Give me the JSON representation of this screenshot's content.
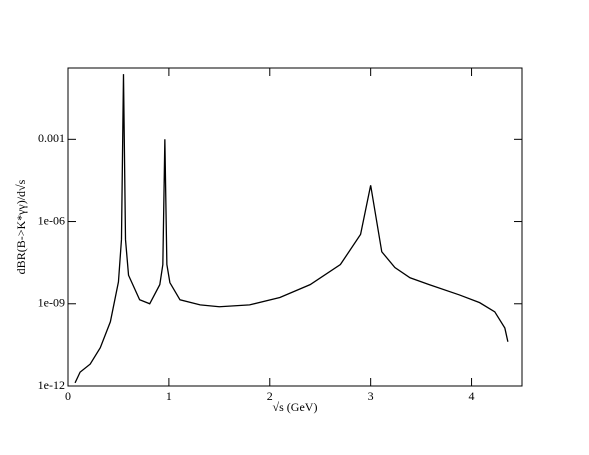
{
  "chart_data": {
    "type": "line",
    "x_label": "√s (GeV)",
    "y_label": "dBR(B->K*γγ)/d√s",
    "x": [
      0.07,
      0.12,
      0.22,
      0.32,
      0.42,
      0.5,
      0.53,
      0.55,
      0.57,
      0.6,
      0.71,
      0.81,
      0.91,
      0.94,
      0.96,
      0.98,
      1.01,
      1.11,
      1.31,
      1.5,
      1.8,
      2.1,
      2.4,
      2.7,
      2.9,
      3.0,
      3.11,
      3.24,
      3.39,
      3.58,
      3.88,
      4.08,
      4.23,
      4.33,
      4.36
    ],
    "series": [
      {
        "color": "#000000",
        "values": [
          1.3e-12,
          3.2e-12,
          6.3e-12,
          2.5e-11,
          2.2e-10,
          6.3e-09,
          2.2e-07,
          0.24,
          2.2e-07,
          1.1e-08,
          1.4e-09,
          1e-09,
          5e-09,
          2.7e-08,
          0.001,
          2.7e-08,
          5.9e-09,
          1.4e-09,
          9.1e-10,
          7.8e-10,
          9.1e-10,
          1.7e-09,
          5e-09,
          2.7e-08,
          3.4e-07,
          2.1e-05,
          7.9e-08,
          2.1e-08,
          8.9e-09,
          5e-09,
          2.1e-09,
          1.1e-09,
          5.1e-10,
          1.3e-10,
          4.1e-11
        ]
      }
    ],
    "xlim": [
      0,
      4.5
    ],
    "xticks": [
      0,
      1,
      2,
      3,
      4
    ],
    "ylim": [
      1e-12,
      0.4
    ],
    "yticks": [
      {
        "value": 1e-12,
        "label": "1e-12"
      },
      {
        "value": 1e-09,
        "label": "1e-09"
      },
      {
        "value": 1e-06,
        "label": "1e-06"
      },
      0.001
    ],
    "log_y": true
  }
}
